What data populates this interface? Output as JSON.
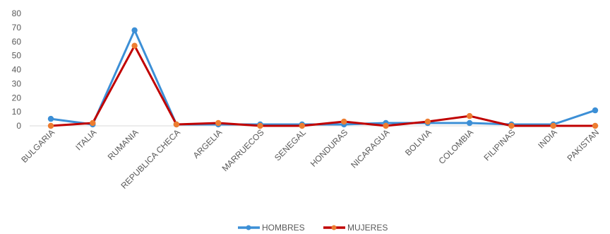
{
  "chart_data": {
    "type": "line",
    "title": "",
    "xlabel": "",
    "ylabel": "",
    "ylim": [
      0,
      80
    ],
    "yticks": [
      0,
      10,
      20,
      30,
      40,
      50,
      60,
      70,
      80
    ],
    "grid": false,
    "legend": "bottom",
    "categories": [
      "BULGARIA",
      "ITALIA",
      "RUMANIA",
      "REPUBLICA CHECA",
      "ARGELIA",
      "MARRUECOS",
      "SENEGAL",
      "HONDURAS",
      "NICARAGUA",
      "BOLIVIA",
      "COLOMBIA",
      "FILIPINAS",
      "INDIA",
      "PAKISTAN"
    ],
    "series": [
      {
        "name": "HOMBRES",
        "color": "#3C8FD6",
        "values": [
          5,
          1,
          68,
          1,
          1,
          1,
          1,
          1,
          2,
          2,
          2,
          1,
          1,
          11
        ]
      },
      {
        "name": "MUJERES",
        "color": "#C00000",
        "marker_color": "#ED7D31",
        "values": [
          0,
          2,
          57,
          1,
          2,
          0,
          0,
          3,
          0,
          3,
          7,
          0,
          0,
          0
        ]
      }
    ]
  }
}
